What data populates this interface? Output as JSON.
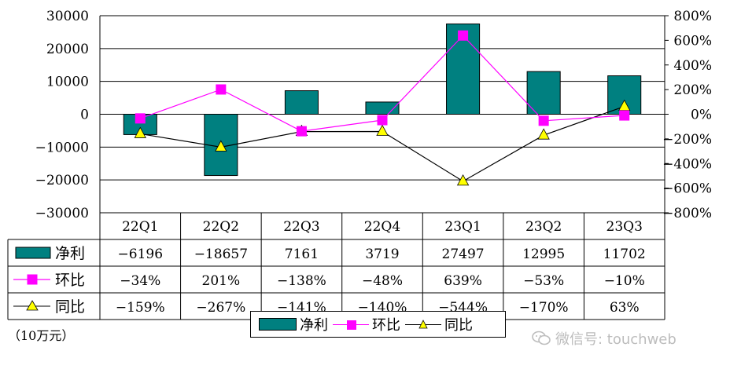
{
  "chart_data": {
    "type": "bar",
    "categories": [
      "22Q1",
      "22Q2",
      "22Q3",
      "22Q4",
      "23Q1",
      "23Q2",
      "23Q3"
    ],
    "series": [
      {
        "name": "净利",
        "kind": "bar",
        "axis": "left",
        "values": [
          -6196,
          -18657,
          7161,
          3719,
          27497,
          12995,
          11702
        ],
        "labels": [
          "−6196",
          "−18657",
          "7161",
          "3719",
          "27497",
          "12995",
          "11702"
        ]
      },
      {
        "name": "环比",
        "kind": "line",
        "axis": "right",
        "values": [
          -34,
          201,
          -138,
          -48,
          639,
          -53,
          -10
        ],
        "labels": [
          "−34%",
          "201%",
          "−138%",
          "−48%",
          "639%",
          "−53%",
          "−10%"
        ]
      },
      {
        "name": "同比",
        "kind": "line",
        "axis": "right",
        "values": [
          -159,
          -267,
          -141,
          -140,
          -544,
          -170,
          63
        ],
        "labels": [
          "−159%",
          "−267%",
          "−141%",
          "−140%",
          "−544%",
          "−170%",
          "63%"
        ]
      }
    ],
    "ylim": [
      -30000,
      30000
    ],
    "y_ticks": [
      30000,
      20000,
      10000,
      0,
      -10000,
      -20000,
      -30000
    ],
    "y_tick_labels": [
      "30000",
      "20000",
      "10000",
      "0",
      "−10000",
      "−20000",
      "−30000"
    ],
    "y2lim": [
      -800,
      800
    ],
    "y2_ticks": [
      800,
      600,
      400,
      200,
      0,
      -200,
      -400,
      -600,
      -800
    ],
    "y2_tick_labels": [
      "800%",
      "600%",
      "400%",
      "200%",
      "0%",
      "−200%",
      "−400%",
      "−600%",
      "−800%"
    ],
    "grid": true,
    "legend": "bottom",
    "colors": {
      "bar": "#008080",
      "mom": "#ff00ff",
      "yoy_line": "#000000",
      "yoy_marker": "#ffff00"
    }
  },
  "unit_label": "（10万元）",
  "watermark": "微信号: touchweb"
}
